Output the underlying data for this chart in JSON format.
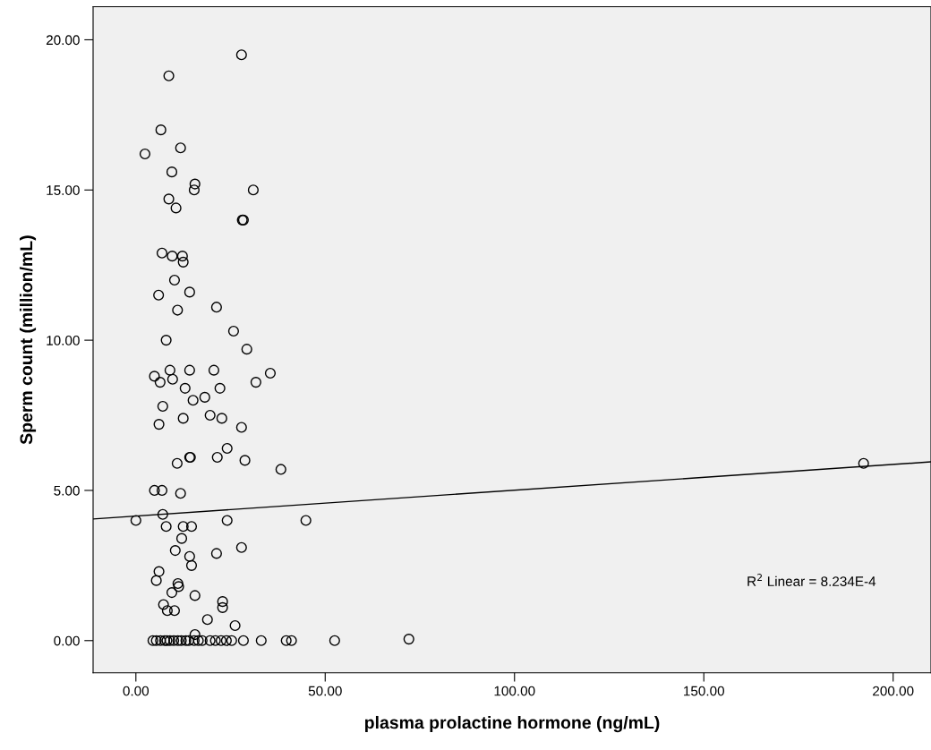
{
  "chart_data": {
    "type": "scatter",
    "xlabel": "plasma prolactine hormone (ng/mL)",
    "ylabel": "Sperm count (million/mL)",
    "xlim": [
      -11.3,
      210
    ],
    "ylim": [
      -1.07,
      21.1
    ],
    "xticks": [
      {
        "value": 0,
        "label": "0.00"
      },
      {
        "value": 50,
        "label": "50.00"
      },
      {
        "value": 100,
        "label": "100.00"
      },
      {
        "value": 150,
        "label": "150.00"
      },
      {
        "value": 200,
        "label": "200.00"
      }
    ],
    "yticks": [
      {
        "value": 0,
        "label": "0.00"
      },
      {
        "value": 5,
        "label": "5.00"
      },
      {
        "value": 10,
        "label": "10.00"
      },
      {
        "value": 15,
        "label": "15.00"
      },
      {
        "value": 20,
        "label": "20.00"
      }
    ],
    "grid": false,
    "annotations": [
      "R$^{2}$ Linear = 8.234E-4"
    ],
    "series": [
      {
        "marker": "circle",
        "color": "#000000",
        "x": [
          27.9,
          8.7,
          6.6,
          2.4,
          11.8,
          9.5,
          15.6,
          15.4,
          31.0,
          8.7,
          10.6,
          28.1,
          28.4,
          6.9,
          9.6,
          12.3,
          12.5,
          14.2,
          10.2,
          6.0,
          11.0,
          21.3,
          25.8,
          8.0,
          29.3,
          4.9,
          6.4,
          9.0,
          9.7,
          14.2,
          20.6,
          13.0,
          22.2,
          18.2,
          15.1,
          31.7,
          35.5,
          7.1,
          6.1,
          12.5,
          19.6,
          22.7,
          27.9,
          24.1,
          14.2,
          14.4,
          10.9,
          21.5,
          28.8,
          38.3,
          4.9,
          6.9,
          11.8,
          0.0,
          7.1,
          8.0,
          12.5,
          14.7,
          24.1,
          44.9,
          12.1,
          10.4,
          14.2,
          14.7,
          21.3,
          27.9,
          6.1,
          5.4,
          11.1,
          11.3,
          9.5,
          15.6,
          22.9,
          22.9,
          7.3,
          8.3,
          10.2,
          18.9,
          26.2,
          15.6,
          192.2,
          4.5,
          5.4,
          6.5,
          7.6,
          8.2,
          9.0,
          10.0,
          11.1,
          12.0,
          13.2,
          14.0,
          15.4,
          16.5,
          17.5,
          19.6,
          21.0,
          22.5,
          23.9,
          25.3,
          28.4,
          33.1,
          39.7,
          41.1,
          52.5,
          72.1
        ],
        "values": [
          19.5,
          18.8,
          17.0,
          16.2,
          16.4,
          15.6,
          15.2,
          15.0,
          15.0,
          14.7,
          14.4,
          14.0,
          14.0,
          12.9,
          12.8,
          12.8,
          12.6,
          11.6,
          12.0,
          11.5,
          11.0,
          11.1,
          10.3,
          10.0,
          9.7,
          8.8,
          8.6,
          9.0,
          8.7,
          9.0,
          9.0,
          8.4,
          8.4,
          8.1,
          8.0,
          8.6,
          8.9,
          7.8,
          7.2,
          7.4,
          7.5,
          7.4,
          7.1,
          6.4,
          6.1,
          6.1,
          5.9,
          6.1,
          6.0,
          5.7,
          5.0,
          5.0,
          4.9,
          4.0,
          4.2,
          3.8,
          3.8,
          3.8,
          4.0,
          4.0,
          3.4,
          3.0,
          2.8,
          2.5,
          2.9,
          3.1,
          2.3,
          2.0,
          1.9,
          1.8,
          1.6,
          1.5,
          1.3,
          1.1,
          1.2,
          1.0,
          1.0,
          0.7,
          0.5,
          0.2,
          5.9,
          0,
          0,
          0,
          0,
          0,
          0,
          0,
          0,
          0,
          0,
          0,
          0,
          0,
          0,
          0,
          0,
          0,
          0,
          0,
          0,
          0,
          0,
          0,
          0,
          0.05
        ]
      },
      {
        "type": "line",
        "color": "#000000",
        "marker": "none",
        "x": [
          -11.3,
          210
        ],
        "values": [
          4.05,
          5.95
        ]
      }
    ]
  }
}
